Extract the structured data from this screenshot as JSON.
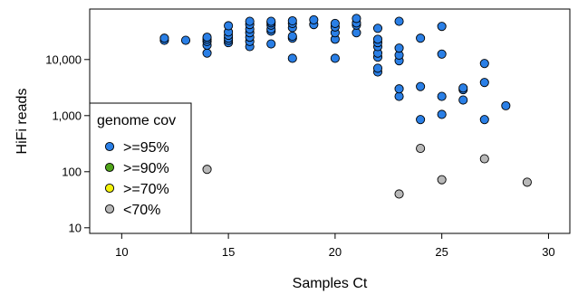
{
  "chart_data": {
    "type": "scatter",
    "title": "",
    "xlabel": "Samples Ct",
    "ylabel": "HiFi reads",
    "xlim": [
      8.5,
      31
    ],
    "ylim_log10": [
      0.9,
      4.9
    ],
    "y_scale": "log",
    "x_ticks": [
      10,
      15,
      20,
      25,
      30
    ],
    "y_ticks": [
      10,
      100,
      1000,
      10000
    ],
    "y_tick_labels": [
      "10",
      "100",
      "1,000",
      "10,000"
    ],
    "grid": false,
    "legend": {
      "title": "genome cov",
      "position": "bottom-left"
    },
    "series": [
      {
        "name": ">=95%",
        "color": "#2a7fe6",
        "points": [
          [
            12,
            22000
          ],
          [
            12,
            24000
          ],
          [
            13,
            22000
          ],
          [
            14,
            13000
          ],
          [
            14,
            18000
          ],
          [
            14,
            21000
          ],
          [
            14,
            23000
          ],
          [
            14,
            25000
          ],
          [
            15,
            20000
          ],
          [
            15,
            22000
          ],
          [
            15,
            24000
          ],
          [
            15,
            27000
          ],
          [
            15,
            31000
          ],
          [
            15,
            40000
          ],
          [
            16,
            17000
          ],
          [
            16,
            21000
          ],
          [
            16,
            25000
          ],
          [
            16,
            30000
          ],
          [
            16,
            35000
          ],
          [
            16,
            42000
          ],
          [
            16,
            48000
          ],
          [
            17,
            19000
          ],
          [
            17,
            32000
          ],
          [
            17,
            35000
          ],
          [
            17,
            41000
          ],
          [
            17,
            45000
          ],
          [
            17,
            48000
          ],
          [
            18,
            10500
          ],
          [
            18,
            24000
          ],
          [
            18,
            26000
          ],
          [
            18,
            37000
          ],
          [
            18,
            44000
          ],
          [
            18,
            49000
          ],
          [
            19,
            42000
          ],
          [
            19,
            51000
          ],
          [
            20,
            10500
          ],
          [
            20,
            23000
          ],
          [
            20,
            30000
          ],
          [
            20,
            38000
          ],
          [
            20,
            44000
          ],
          [
            21,
            30000
          ],
          [
            21,
            41000
          ],
          [
            21,
            45000
          ],
          [
            21,
            54000
          ],
          [
            22,
            6000
          ],
          [
            22,
            7000
          ],
          [
            22,
            11000
          ],
          [
            22,
            13000
          ],
          [
            22,
            17000
          ],
          [
            22,
            20000
          ],
          [
            22,
            23000
          ],
          [
            22,
            36000
          ],
          [
            23,
            2200
          ],
          [
            23,
            3000
          ],
          [
            23,
            9500
          ],
          [
            23,
            12000
          ],
          [
            23,
            16000
          ],
          [
            23,
            48000
          ],
          [
            24,
            850
          ],
          [
            24,
            3300
          ],
          [
            24,
            24000
          ],
          [
            25,
            1050
          ],
          [
            25,
            2200
          ],
          [
            25,
            12500
          ],
          [
            25,
            39000
          ],
          [
            26,
            1900
          ],
          [
            26,
            2900
          ],
          [
            26,
            3100
          ],
          [
            27,
            850
          ],
          [
            27,
            3900
          ],
          [
            27,
            8500
          ],
          [
            28,
            1500
          ]
        ]
      },
      {
        "name": ">=90%",
        "color": "#4fa319",
        "points": []
      },
      {
        "name": ">=70%",
        "color": "#f2f20a",
        "points": []
      },
      {
        "name": "<70%",
        "color": "#b8b8b8",
        "points": [
          [
            14,
            110
          ],
          [
            23,
            40
          ],
          [
            24,
            260
          ],
          [
            25,
            72
          ],
          [
            27,
            170
          ],
          [
            29,
            65
          ]
        ]
      }
    ]
  }
}
